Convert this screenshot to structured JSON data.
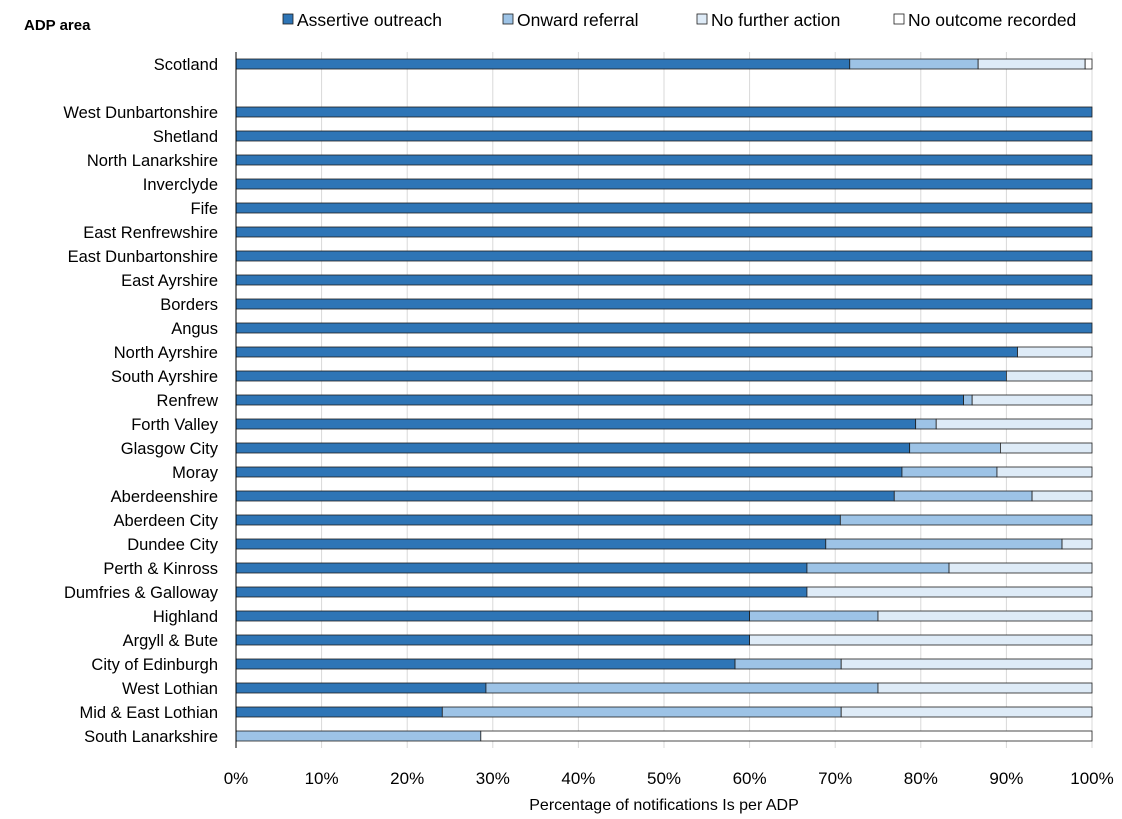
{
  "chart_data": {
    "type": "bar",
    "orientation": "horizontal",
    "stacked": true,
    "ylabel": "ADP area",
    "xlabel": "Percentage  of notifications  Is per ADP",
    "xlim": [
      0,
      100
    ],
    "x_ticks": [
      "0%",
      "10%",
      "20%",
      "30%",
      "40%",
      "50%",
      "60%",
      "70%",
      "80%",
      "90%",
      "100%"
    ],
    "grid": "vertical",
    "legend_position": "top",
    "categories": [
      "Scotland",
      "",
      "West Dunbartonshire",
      "Shetland",
      "North Lanarkshire",
      "Inverclyde",
      "Fife",
      "East Renfrewshire",
      "East Dunbartonshire",
      "East Ayrshire",
      "Borders",
      "Angus",
      "North Ayrshire",
      "South Ayrshire",
      "Renfrew",
      "Forth Valley",
      "Glasgow City",
      "Moray",
      "Aberdeenshire",
      "Aberdeen City",
      "Dundee City",
      "Perth & Kinross",
      "Dumfries & Galloway",
      "Highland",
      "Argyll & Bute",
      "City of Edinburgh",
      "West Lothian",
      "Mid & East Lothian",
      "South Lanarkshire"
    ],
    "series": [
      {
        "name": "Assertive outreach",
        "color": "#2e75b6",
        "values": [
          71.7,
          null,
          100,
          100,
          100,
          100,
          100,
          100,
          100,
          100,
          100,
          100,
          91.3,
          90,
          85,
          79.4,
          78.7,
          77.8,
          76.9,
          70.6,
          68.9,
          66.7,
          66.7,
          60,
          60,
          58.3,
          29.2,
          24.1,
          0
        ]
      },
      {
        "name": "Onward referral",
        "color": "#9dc3e6",
        "values": [
          15,
          null,
          0,
          0,
          0,
          0,
          0,
          0,
          0,
          0,
          0,
          0,
          0,
          0,
          1,
          2.4,
          10.6,
          11.1,
          16.1,
          29.4,
          27.6,
          16.6,
          0,
          15,
          0,
          12.4,
          45.8,
          46.6,
          28.6
        ]
      },
      {
        "name": "No further action",
        "color": "#deebf7",
        "values": [
          12.5,
          null,
          0,
          0,
          0,
          0,
          0,
          0,
          0,
          0,
          0,
          0,
          8.7,
          10,
          14,
          18.2,
          10.7,
          11.1,
          7,
          0,
          3.5,
          16.7,
          33.3,
          25,
          40,
          29.3,
          25,
          29.3,
          0
        ]
      },
      {
        "name": "No outcome recorded",
        "color": "#ffffff",
        "values": [
          0.8,
          null,
          0,
          0,
          0,
          0,
          0,
          0,
          0,
          0,
          0,
          0,
          0,
          0,
          0,
          0,
          0,
          0,
          0,
          0,
          0,
          0,
          0,
          0,
          0,
          0,
          0,
          0,
          71.4
        ]
      }
    ]
  }
}
